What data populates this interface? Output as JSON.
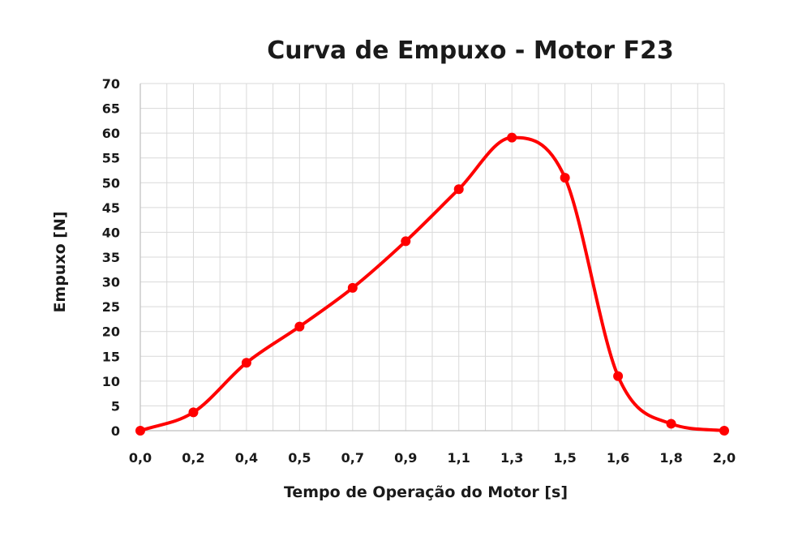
{
  "chart_data": {
    "type": "line",
    "title": "Curva de Empuxo - Motor F23",
    "xlabel": "Tempo de Operação do Motor [s]",
    "ylabel": "Empuxo [N]",
    "categories": [
      "0,0",
      "0,2",
      "0,4",
      "0,5",
      "0,7",
      "0,9",
      "1,1",
      "1,3",
      "1,5",
      "1,6",
      "1,8",
      "2,0"
    ],
    "series": [
      {
        "values": [
          0,
          3.7,
          13.7,
          21,
          28.8,
          38.2,
          48.7,
          59.1,
          51,
          11,
          1.4,
          0
        ]
      }
    ],
    "ylim": [
      0,
      70
    ],
    "yticks": [
      "0",
      "5",
      "10",
      "15",
      "20",
      "25",
      "30",
      "35",
      "40",
      "45",
      "50",
      "55",
      "60",
      "65",
      "70"
    ],
    "grid": true,
    "colors": {
      "line": "#ff0000",
      "grid": "#d9d9d9"
    }
  }
}
